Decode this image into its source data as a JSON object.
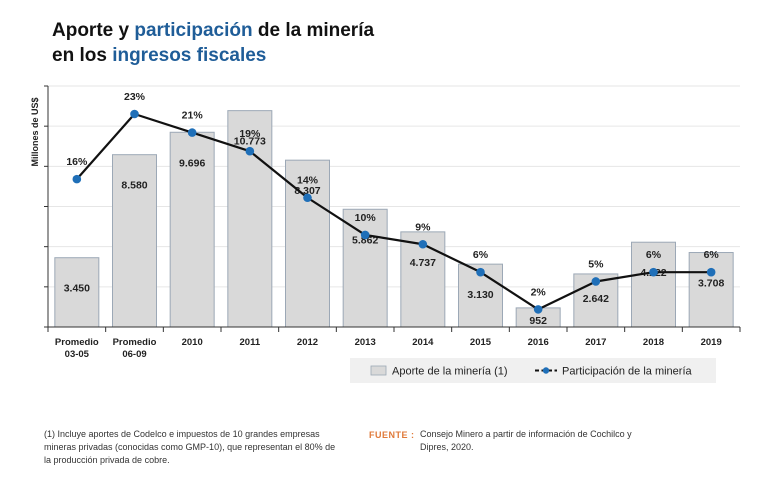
{
  "title": {
    "line1_a": "Aporte y ",
    "line1_accent": "participación",
    "line1_b": " de la minería",
    "line2_a": "en los ",
    "line2_accent": "ingresos fiscales"
  },
  "colors": {
    "accent": "#1f5d98",
    "bar_fill": "#d9d9d9",
    "bar_stroke": "#9ca8b6",
    "line": "#111111",
    "marker": "#1f6fb8",
    "source_label": "#e07a3a"
  },
  "chart_data": {
    "type": "bar",
    "categories": [
      [
        "Promedio",
        "03-05"
      ],
      [
        "Promedio",
        "06-09"
      ],
      [
        "2010"
      ],
      [
        "2011"
      ],
      [
        "2012"
      ],
      [
        "2013"
      ],
      [
        "2014"
      ],
      [
        "2015"
      ],
      [
        "2016"
      ],
      [
        "2017"
      ],
      [
        "2018"
      ],
      [
        "2019"
      ]
    ],
    "ylabel": "Millones de US$",
    "ylim": [
      0,
      12000
    ],
    "grid": true,
    "series": [
      {
        "name": "Aporte de la minería (1)",
        "type": "bar",
        "values": [
          3450,
          8580,
          9696,
          10773,
          8307,
          5862,
          4737,
          3130,
          952,
          2642,
          4222,
          3708
        ],
        "labels": [
          "3.450",
          "8.580",
          "9.696",
          "10.773",
          "8.307",
          "5.862",
          "4.737",
          "3.130",
          "952",
          "2.642",
          "4.222",
          "3.708"
        ]
      },
      {
        "name": "Participación de la minería",
        "type": "line",
        "values": [
          16,
          23,
          21,
          19,
          14,
          10,
          9,
          6,
          2,
          5,
          6,
          6
        ],
        "labels": [
          "16%",
          "23%",
          "21%",
          "19%",
          "14%",
          "10%",
          "9%",
          "6%",
          "2%",
          "5%",
          "6%",
          "6%"
        ]
      }
    ],
    "legend_position": "bottom-right"
  },
  "footnote": "(1) Incluye aportes de Codelco e impuestos de 10 grandes empresas mineras privadas (conocidas como GMP-10), que representan el 80% de la producción privada de cobre.",
  "source": {
    "label": "FUENTE :",
    "text": "Consejo Minero a partir de información de Cochilco y Dipres, 2020."
  }
}
